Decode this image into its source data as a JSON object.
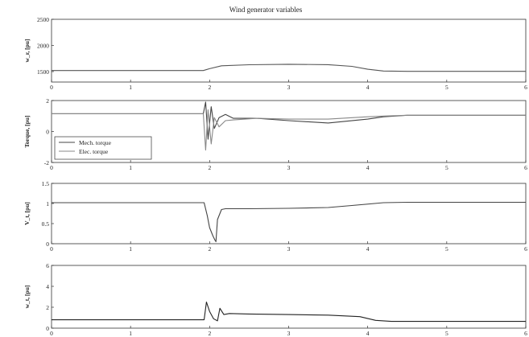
{
  "figure": {
    "title": "Wind generator variables"
  },
  "chart_data": [
    {
      "type": "line",
      "ylabel": "w_r, [pu]",
      "xlim": [
        0,
        6
      ],
      "ylim": [
        1300,
        2500
      ],
      "xticks": [
        "0",
        "1",
        "2",
        "3",
        "4",
        "5",
        "6"
      ],
      "yticks": [
        "2500",
        "2000",
        "1500"
      ],
      "yticks_values": [
        2500,
        2000,
        1500
      ],
      "grid": false,
      "series": [
        {
          "x": [
            0,
            1.92,
            2.0,
            2.15,
            2.5,
            3.0,
            3.5,
            3.8,
            4.0,
            4.2,
            4.5,
            5.0,
            6.0
          ],
          "y": [
            1520,
            1520,
            1555,
            1610,
            1630,
            1640,
            1632,
            1600,
            1545,
            1510,
            1505,
            1505,
            1505
          ],
          "color": "#555555"
        }
      ]
    },
    {
      "type": "line",
      "ylabel": "Torque, [pu]",
      "xlim": [
        0,
        6
      ],
      "ylim": [
        -2,
        2
      ],
      "xticks": [
        "0",
        "1",
        "2",
        "3",
        "4",
        "5",
        "6"
      ],
      "yticks": [
        "2",
        "0",
        "-2"
      ],
      "yticks_values": [
        2,
        0,
        -2
      ],
      "grid": false,
      "legend": {
        "position": "bottom-left",
        "entries": [
          "Mech. torque",
          "Elec. torque"
        ]
      },
      "series": [
        {
          "name": "Mech. torque",
          "x": [
            0,
            1.92,
            1.95,
            1.98,
            2.02,
            2.06,
            2.12,
            2.2,
            2.3,
            2.6,
            3.0,
            3.5,
            4.0,
            4.2,
            4.5,
            5.0,
            6.0
          ],
          "y": [
            1.15,
            1.15,
            1.9,
            -0.5,
            1.6,
            0.2,
            0.9,
            1.1,
            0.85,
            0.85,
            0.7,
            0.55,
            0.8,
            0.95,
            1.05,
            1.05,
            1.05
          ],
          "color": "#444444"
        },
        {
          "name": "Elec. torque",
          "x": [
            0,
            1.92,
            1.95,
            1.98,
            2.02,
            2.06,
            2.12,
            2.2,
            2.3,
            2.6,
            3.0,
            3.5,
            4.0,
            4.2,
            4.5,
            5.0,
            6.0
          ],
          "y": [
            1.15,
            1.15,
            -1.2,
            1.4,
            -0.8,
            0.9,
            0.3,
            0.7,
            0.75,
            0.85,
            0.8,
            0.8,
            0.95,
            1.0,
            1.05,
            1.05,
            1.05
          ],
          "color": "#888888"
        }
      ]
    },
    {
      "type": "line",
      "ylabel": "V_t, [pu]",
      "xlim": [
        0,
        6
      ],
      "ylim": [
        0,
        1.5
      ],
      "xticks": [
        "0",
        "1",
        "2",
        "3",
        "4",
        "5",
        "6"
      ],
      "yticks": [
        "1.5",
        "1",
        "0.5",
        "0"
      ],
      "yticks_values": [
        1.5,
        1,
        0.5,
        0
      ],
      "grid": false,
      "series": [
        {
          "x": [
            0,
            1.93,
            1.97,
            2.0,
            2.04,
            2.07,
            2.08,
            2.1,
            2.15,
            2.2,
            2.5,
            3.0,
            3.5,
            3.8,
            4.2,
            4.5,
            6.0
          ],
          "y": [
            1.02,
            1.02,
            0.7,
            0.4,
            0.2,
            0.08,
            0.05,
            0.6,
            0.85,
            0.87,
            0.87,
            0.88,
            0.9,
            0.95,
            1.02,
            1.03,
            1.03
          ],
          "color": "#444444"
        }
      ]
    },
    {
      "type": "line",
      "ylabel": "w_t, [pu]",
      "xlim": [
        0,
        6
      ],
      "ylim": [
        0,
        6
      ],
      "xticks": [
        "0",
        "1",
        "2",
        "3",
        "4",
        "5",
        "6"
      ],
      "yticks": [
        "6",
        "4",
        "2",
        "0"
      ],
      "yticks_values": [
        6,
        4,
        2,
        0
      ],
      "grid": false,
      "series": [
        {
          "x": [
            0,
            1.93,
            1.96,
            2.0,
            2.05,
            2.1,
            2.13,
            2.18,
            2.25,
            2.5,
            3.0,
            3.5,
            3.9,
            4.1,
            4.3,
            5.0,
            6.0
          ],
          "y": [
            0.8,
            0.8,
            2.5,
            1.6,
            0.9,
            0.7,
            1.9,
            1.3,
            1.4,
            1.35,
            1.3,
            1.25,
            1.1,
            0.75,
            0.65,
            0.65,
            0.65
          ],
          "color": "#222222"
        }
      ]
    }
  ]
}
